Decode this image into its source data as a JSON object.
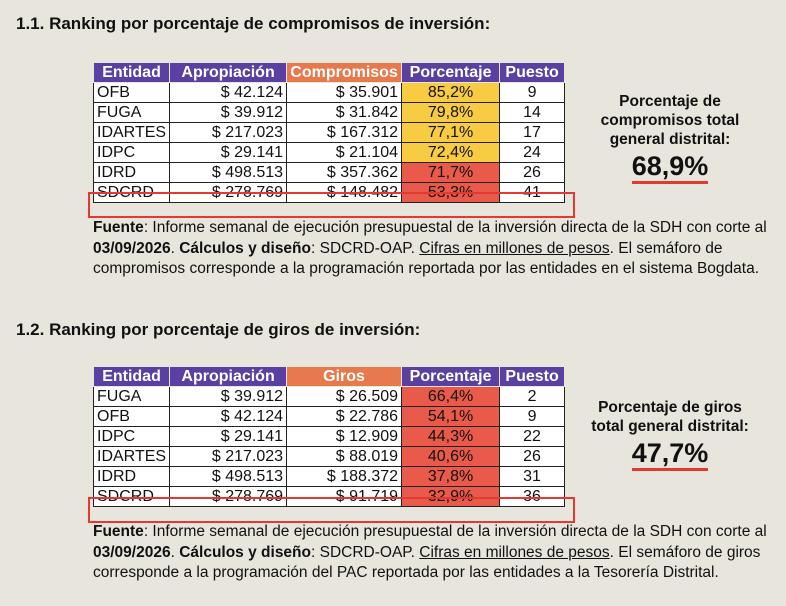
{
  "section1": {
    "title": "1.1. Ranking por porcentaje de compromisos de inversión",
    "headers": [
      "Entidad",
      "Apropiación",
      "Compromisos",
      "Porcentaje",
      "Puesto"
    ],
    "rows": [
      {
        "entidad": "OFB",
        "apropiacion": "$ 42.124",
        "valor": "$ 35.901",
        "porcentaje": "85,2%",
        "puesto": "9",
        "color": "yellow"
      },
      {
        "entidad": "FUGA",
        "apropiacion": "$ 39.912",
        "valor": "$ 31.842",
        "porcentaje": "79,8%",
        "puesto": "14",
        "color": "yellow"
      },
      {
        "entidad": "IDARTES",
        "apropiacion": "$ 217.023",
        "valor": "$ 167.312",
        "porcentaje": "77,1%",
        "puesto": "17",
        "color": "yellow"
      },
      {
        "entidad": "IDPC",
        "apropiacion": "$ 29.141",
        "valor": "$ 21.104",
        "porcentaje": "72,4%",
        "puesto": "24",
        "color": "yellow"
      },
      {
        "entidad": "IDRD",
        "apropiacion": "$ 498.513",
        "valor": "$ 357.362",
        "porcentaje": "71,7%",
        "puesto": "26",
        "color": "red"
      },
      {
        "entidad": "SDCRD",
        "apropiacion": "$ 278.769",
        "valor": "$ 148.482",
        "porcentaje": "53,3%",
        "puesto": "41",
        "color": "red"
      }
    ],
    "summary_label": "Porcentaje de compromisos total general distrital:",
    "summary_value": "68,9%",
    "note": {
      "fuente_label": "Fuente",
      "fuente_text": ": Informe semanal de ejecución presupuestal de la inversión directa de la SDH con corte al ",
      "fecha": "03/09/2026",
      "calc_label": "Cálculos y diseño",
      "calc_text": ": SDCRD-OAP. ",
      "cifras": "Cifras en millones de pesos",
      "end_text": ". El semáforo de compromisos corresponde a la programación reportada por las entidades en el sistema Bogdata."
    }
  },
  "section2": {
    "title": "1.2. Ranking por porcentaje de giros de inversión",
    "headers": [
      "Entidad",
      "Apropiación",
      "Giros",
      "Porcentaje",
      "Puesto"
    ],
    "rows": [
      {
        "entidad": "FUGA",
        "apropiacion": "$ 39.912",
        "valor": "$ 26.509",
        "porcentaje": "66,4%",
        "puesto": "2",
        "color": "red"
      },
      {
        "entidad": "OFB",
        "apropiacion": "$ 42.124",
        "valor": "$ 22.786",
        "porcentaje": "54,1%",
        "puesto": "9",
        "color": "red"
      },
      {
        "entidad": "IDPC",
        "apropiacion": "$ 29.141",
        "valor": "$ 12.909",
        "porcentaje": "44,3%",
        "puesto": "22",
        "color": "red"
      },
      {
        "entidad": "IDARTES",
        "apropiacion": "$ 217.023",
        "valor": "$ 88.019",
        "porcentaje": "40,6%",
        "puesto": "26",
        "color": "red"
      },
      {
        "entidad": "IDRD",
        "apropiacion": "$ 498.513",
        "valor": "$ 188.372",
        "porcentaje": "37,8%",
        "puesto": "31",
        "color": "red"
      },
      {
        "entidad": "SDCRD",
        "apropiacion": "$ 278.769",
        "valor": "$ 91.719",
        "porcentaje": "32,9%",
        "puesto": "36",
        "color": "red"
      }
    ],
    "summary_label": "Porcentaje de giros total general distrital:",
    "summary_value": "47,7%",
    "note": {
      "fuente_label": "Fuente",
      "fuente_text": ": Informe semanal de ejecución presupuestal de la inversión directa de la SDH con corte al ",
      "fecha": "03/09/2026",
      "calc_label": "Cálculos y diseño",
      "calc_text": ": SDCRD-OAP. ",
      "cifras": "Cifras en millones de pesos",
      "end_text": ". El semáforo de giros corresponde a la programación del PAC reportada por las entidades a la Tesorería Distrital."
    }
  },
  "colors": {
    "header": "#5a40a0",
    "header_highlight": "#e8794c",
    "yellow": "#f7cc42",
    "red": "#e95a4a",
    "box": "#e23a32"
  }
}
